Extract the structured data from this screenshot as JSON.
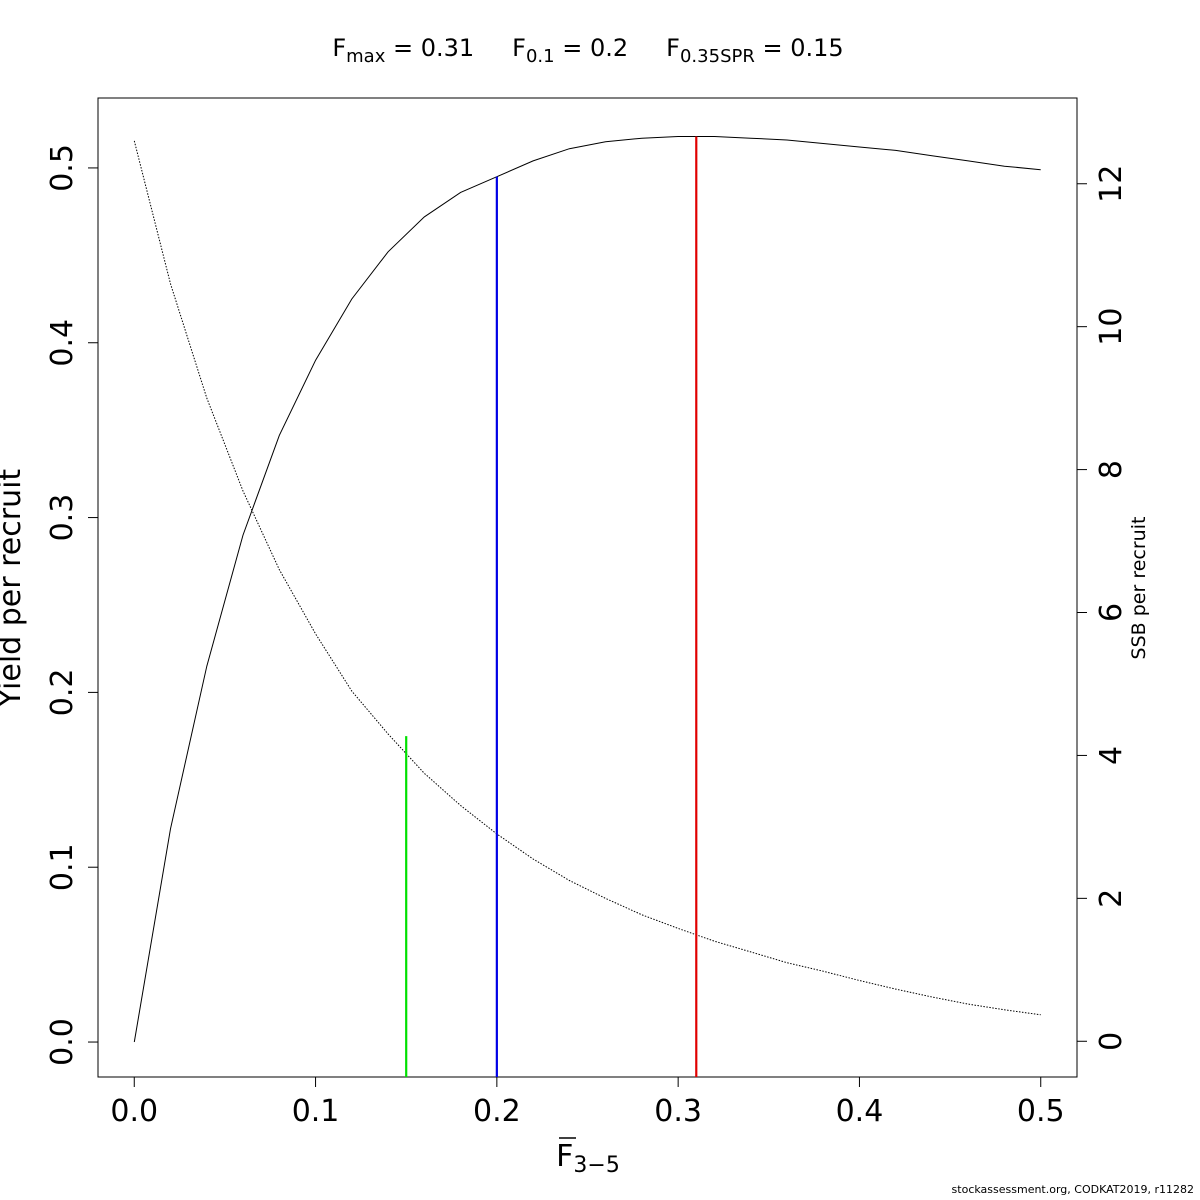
{
  "chart_data": {
    "type": "line",
    "title_parts": [
      {
        "base": "F",
        "sub": "max",
        "rest": " = 0.31"
      },
      {
        "base": "F",
        "sub": "0.1",
        "rest": " = 0.2"
      },
      {
        "base": "F",
        "sub": "0.35SPR",
        "rest": " = 0.15"
      }
    ],
    "xlabel": {
      "base": "F",
      "sub": "3−5"
    },
    "ylabel": "Yield per recruit",
    "y2label": "SSB per recruit",
    "xlim": [
      -0.02,
      0.52
    ],
    "ylim": [
      -0.02,
      0.54
    ],
    "y2lim": [
      -0.5,
      13.2
    ],
    "xticks": [
      0.0,
      0.1,
      0.2,
      0.3,
      0.4,
      0.5
    ],
    "xtick_labels": [
      "0.0",
      "0.1",
      "0.2",
      "0.3",
      "0.4",
      "0.5"
    ],
    "yticks": [
      0.0,
      0.1,
      0.2,
      0.3,
      0.4,
      0.5
    ],
    "ytick_labels": [
      "0.0",
      "0.1",
      "0.2",
      "0.3",
      "0.4",
      "0.5"
    ],
    "y2ticks": [
      0,
      2,
      4,
      6,
      8,
      10,
      12
    ],
    "y2tick_labels": [
      "0",
      "2",
      "4",
      "6",
      "8",
      "10",
      "12"
    ],
    "grid": false,
    "series": [
      {
        "axis": "left",
        "style": "solid",
        "x": [
          0.0,
          0.02,
          0.04,
          0.06,
          0.08,
          0.1,
          0.12,
          0.14,
          0.16,
          0.18,
          0.2,
          0.22,
          0.24,
          0.26,
          0.28,
          0.3,
          0.32,
          0.34,
          0.36,
          0.38,
          0.4,
          0.42,
          0.44,
          0.46,
          0.48,
          0.5
        ],
        "y": [
          0.0,
          0.122,
          0.215,
          0.29,
          0.347,
          0.39,
          0.425,
          0.452,
          0.472,
          0.486,
          0.495,
          0.504,
          0.511,
          0.515,
          0.517,
          0.518,
          0.518,
          0.517,
          0.516,
          0.514,
          0.512,
          0.51,
          0.507,
          0.504,
          0.501,
          0.499
        ]
      },
      {
        "axis": "right",
        "style": "dotted",
        "x": [
          0.0,
          0.02,
          0.04,
          0.06,
          0.08,
          0.1,
          0.12,
          0.14,
          0.16,
          0.18,
          0.2,
          0.22,
          0.24,
          0.26,
          0.28,
          0.3,
          0.32,
          0.34,
          0.36,
          0.38,
          0.4,
          0.42,
          0.44,
          0.46,
          0.48,
          0.5
        ],
        "y": [
          12.6,
          10.6,
          9.0,
          7.7,
          6.6,
          5.7,
          4.9,
          4.3,
          3.75,
          3.3,
          2.9,
          2.55,
          2.25,
          2.0,
          1.77,
          1.58,
          1.4,
          1.25,
          1.1,
          0.98,
          0.85,
          0.73,
          0.62,
          0.52,
          0.44,
          0.37
        ]
      }
    ],
    "reference_lines": [
      {
        "x": 0.15,
        "y_top": 0.175,
        "color": "#00e000"
      },
      {
        "x": 0.2,
        "y_top": 0.495,
        "color": "#0000e6"
      },
      {
        "x": 0.31,
        "y_top": 0.518,
        "color": "#e00000"
      }
    ]
  },
  "footer": "stockassessment.org, CODKAT2019, r11282"
}
